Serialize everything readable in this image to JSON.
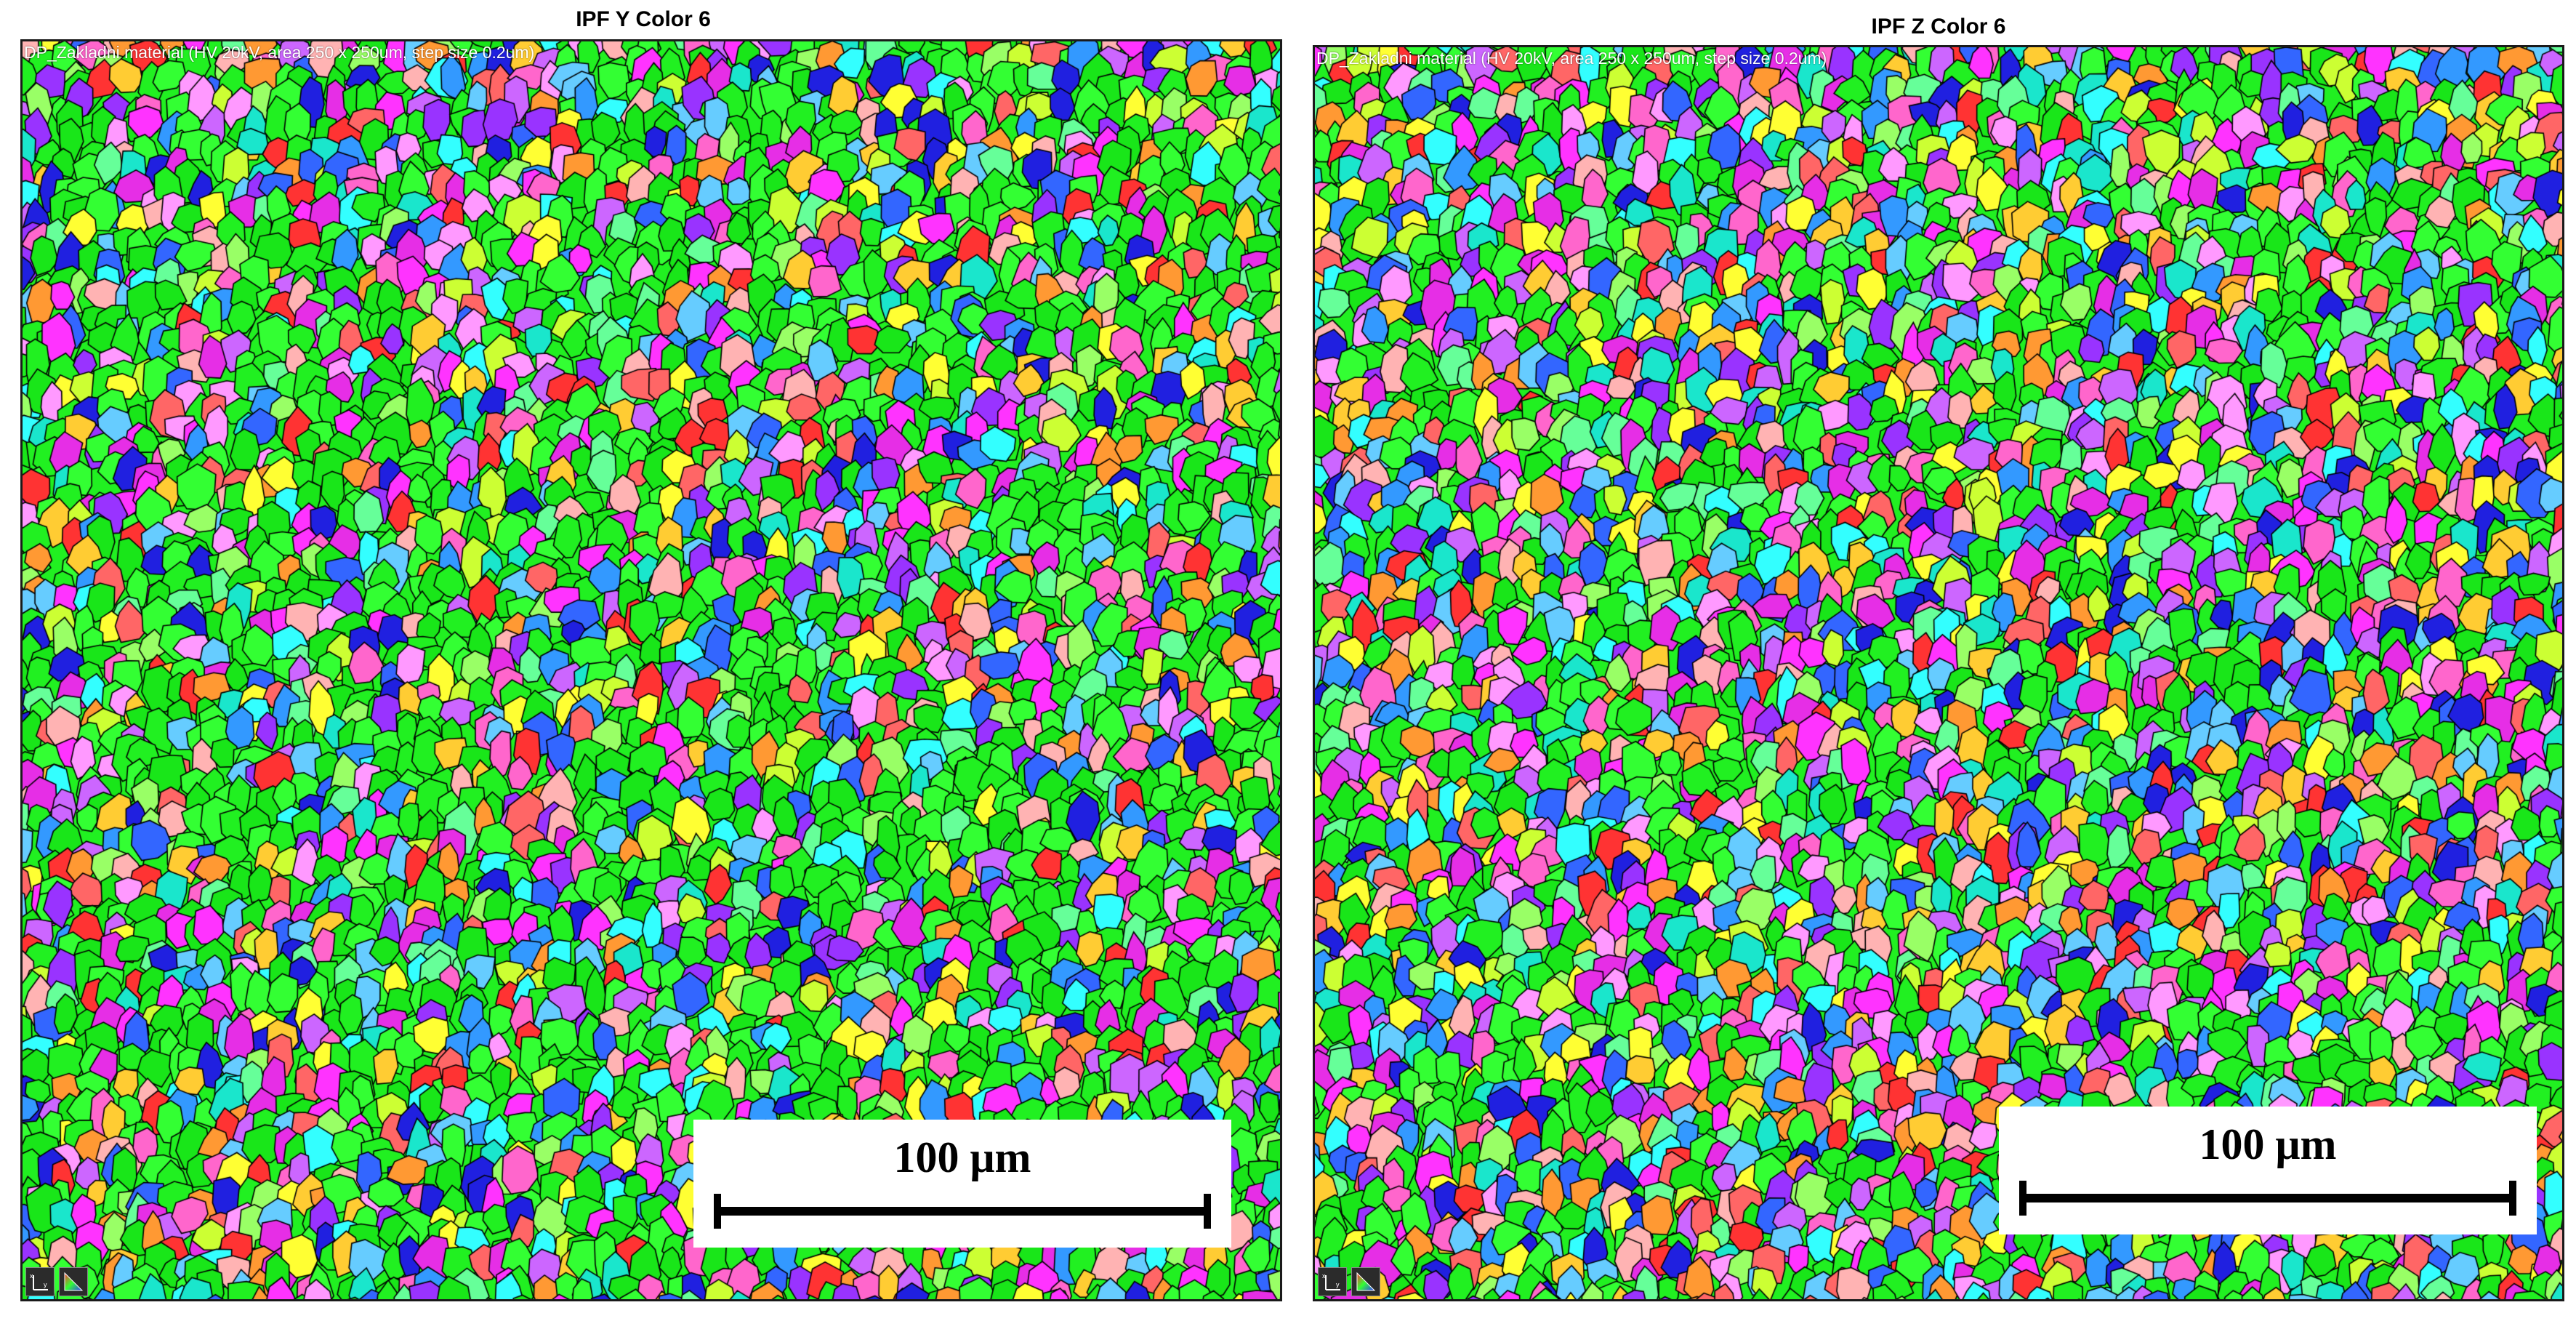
{
  "panels": [
    {
      "title": "IPF Y Color 6",
      "map_label": "DP_Zakladni material (HV 20kV, area 250 x 250um, step size 0.2um)",
      "scale_bar_label": "100 μm",
      "scale_bar_value_um": 100,
      "field_width_um": 250,
      "icons": [
        "axes-icon",
        "ipf-triangle-icon"
      ]
    },
    {
      "title": "IPF Z Color 6",
      "map_label": "DP_Zakladni material (HV 20kV, area 250 x 250um, step size 0.2um)",
      "scale_bar_label": "100 μm",
      "scale_bar_value_um": 100,
      "field_width_um": 250,
      "icons": [
        "axes-icon",
        "ipf-triangle-icon"
      ]
    }
  ],
  "colors": {
    "grain_palette": [
      "#21f021",
      "#33ff33",
      "#19e619",
      "#ff33ff",
      "#e62ee6",
      "#3366ff",
      "#2020e0",
      "#33ffff",
      "#1ae6cc",
      "#ff3333",
      "#ff6666",
      "#ff9933",
      "#ffcc33",
      "#ffff33",
      "#ccff33",
      "#99ff66",
      "#ff66cc",
      "#cc66ff",
      "#9933ff",
      "#66ccff",
      "#ff99ff",
      "#ffb3b3",
      "#66ff99",
      "#3399ff"
    ],
    "grain_boundary": "#000000",
    "scale_box_background": "#ffffff"
  }
}
